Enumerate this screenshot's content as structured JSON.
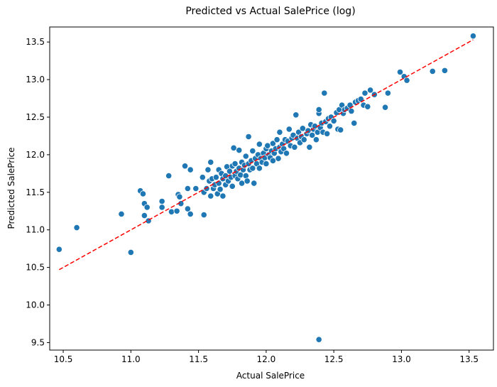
{
  "chart_data": {
    "type": "scatter",
    "title": "Predicted vs Actual SalePrice (log)",
    "xlabel": "Actual SalePrice",
    "ylabel": "Predicted SalePrice",
    "xlim": [
      10.4,
      13.68
    ],
    "ylim": [
      9.4,
      13.7
    ],
    "xticks": [
      "10.5",
      "11.0",
      "11.5",
      "12.0",
      "12.5",
      "13.0",
      "13.5"
    ],
    "yticks": [
      "9.5",
      "10.0",
      "10.5",
      "11.0",
      "11.5",
      "12.0",
      "12.5",
      "13.0",
      "13.5"
    ],
    "grid": false,
    "point_color": "#1f77b4",
    "line_color": "#ff0000",
    "reference_line": {
      "style": "dashed",
      "x": [
        10.47,
        13.53
      ],
      "y": [
        10.47,
        13.53
      ]
    },
    "points": [
      [
        10.47,
        10.74
      ],
      [
        10.6,
        11.03
      ],
      [
        10.93,
        11.21
      ],
      [
        11.0,
        10.7
      ],
      [
        11.07,
        11.52
      ],
      [
        11.09,
        11.48
      ],
      [
        11.1,
        11.35
      ],
      [
        11.1,
        11.19
      ],
      [
        11.12,
        11.3
      ],
      [
        11.13,
        11.12
      ],
      [
        11.23,
        11.38
      ],
      [
        11.23,
        11.3
      ],
      [
        11.28,
        11.72
      ],
      [
        11.3,
        11.24
      ],
      [
        11.34,
        11.25
      ],
      [
        11.35,
        11.47
      ],
      [
        11.36,
        11.44
      ],
      [
        11.37,
        11.35
      ],
      [
        11.4,
        11.85
      ],
      [
        11.42,
        11.55
      ],
      [
        11.42,
        11.28
      ],
      [
        11.44,
        11.8
      ],
      [
        11.44,
        11.21
      ],
      [
        11.48,
        11.55
      ],
      [
        11.53,
        11.7
      ],
      [
        11.54,
        11.5
      ],
      [
        11.54,
        11.2
      ],
      [
        11.56,
        11.55
      ],
      [
        11.57,
        11.8
      ],
      [
        11.58,
        11.65
      ],
      [
        11.59,
        11.45
      ],
      [
        11.59,
        11.9
      ],
      [
        11.6,
        11.68
      ],
      [
        11.61,
        11.55
      ],
      [
        11.62,
        11.6
      ],
      [
        11.63,
        11.7
      ],
      [
        11.64,
        11.48
      ],
      [
        11.65,
        11.62
      ],
      [
        11.65,
        11.8
      ],
      [
        11.66,
        11.54
      ],
      [
        11.67,
        11.75
      ],
      [
        11.68,
        11.68
      ],
      [
        11.68,
        11.45
      ],
      [
        11.7,
        11.72
      ],
      [
        11.7,
        11.6
      ],
      [
        11.71,
        11.84
      ],
      [
        11.72,
        11.65
      ],
      [
        11.73,
        11.78
      ],
      [
        11.74,
        11.7
      ],
      [
        11.75,
        11.85
      ],
      [
        11.75,
        11.58
      ],
      [
        11.76,
        12.09
      ],
      [
        11.77,
        11.72
      ],
      [
        11.77,
        11.88
      ],
      [
        11.78,
        11.78
      ],
      [
        11.79,
        11.68
      ],
      [
        11.8,
        11.82
      ],
      [
        11.8,
        12.06
      ],
      [
        11.81,
        11.73
      ],
      [
        11.82,
        11.9
      ],
      [
        11.82,
        11.62
      ],
      [
        11.83,
        11.8
      ],
      [
        11.84,
        11.86
      ],
      [
        11.85,
        11.72
      ],
      [
        11.85,
        11.98
      ],
      [
        11.86,
        11.65
      ],
      [
        11.87,
        12.24
      ],
      [
        11.87,
        11.88
      ],
      [
        11.88,
        11.8
      ],
      [
        11.89,
        11.92
      ],
      [
        11.9,
        11.82
      ],
      [
        11.9,
        12.05
      ],
      [
        11.91,
        11.62
      ],
      [
        11.92,
        11.95
      ],
      [
        11.93,
        11.88
      ],
      [
        11.94,
        12.0
      ],
      [
        11.95,
        11.82
      ],
      [
        11.95,
        12.14
      ],
      [
        11.96,
        11.95
      ],
      [
        11.97,
        11.9
      ],
      [
        11.98,
        12.02
      ],
      [
        11.99,
        11.96
      ],
      [
        12.0,
        12.08
      ],
      [
        12.0,
        11.88
      ],
      [
        12.01,
        12.12
      ],
      [
        12.02,
        12.0
      ],
      [
        12.03,
        11.96
      ],
      [
        12.04,
        12.05
      ],
      [
        12.05,
        12.15
      ],
      [
        12.05,
        11.92
      ],
      [
        12.06,
        12.02
      ],
      [
        12.07,
        12.08
      ],
      [
        12.08,
        12.2
      ],
      [
        12.09,
        11.95
      ],
      [
        12.1,
        12.1
      ],
      [
        12.1,
        12.3
      ],
      [
        12.11,
        12.04
      ],
      [
        12.12,
        12.14
      ],
      [
        12.13,
        12.08
      ],
      [
        12.14,
        12.2
      ],
      [
        12.15,
        12.02
      ],
      [
        12.16,
        12.18
      ],
      [
        12.17,
        12.34
      ],
      [
        12.18,
        12.12
      ],
      [
        12.19,
        12.22
      ],
      [
        12.2,
        12.26
      ],
      [
        12.21,
        12.1
      ],
      [
        12.22,
        12.53
      ],
      [
        12.23,
        12.22
      ],
      [
        12.24,
        12.3
      ],
      [
        12.25,
        12.16
      ],
      [
        12.26,
        12.24
      ],
      [
        12.27,
        12.35
      ],
      [
        12.28,
        12.2
      ],
      [
        12.3,
        12.28
      ],
      [
        12.31,
        12.32
      ],
      [
        12.32,
        12.1
      ],
      [
        12.33,
        12.4
      ],
      [
        12.34,
        12.26
      ],
      [
        12.35,
        12.34
      ],
      [
        12.36,
        12.38
      ],
      [
        12.37,
        12.2
      ],
      [
        12.38,
        12.3
      ],
      [
        12.39,
        12.55
      ],
      [
        12.39,
        12.6
      ],
      [
        12.39,
        9.54
      ],
      [
        12.4,
        12.36
      ],
      [
        12.41,
        12.42
      ],
      [
        12.42,
        12.3
      ],
      [
        12.43,
        12.82
      ],
      [
        12.44,
        12.44
      ],
      [
        12.45,
        12.28
      ],
      [
        12.46,
        12.48
      ],
      [
        12.47,
        12.38
      ],
      [
        12.48,
        12.5
      ],
      [
        12.5,
        12.45
      ],
      [
        12.52,
        12.56
      ],
      [
        12.53,
        12.34
      ],
      [
        12.54,
        12.6
      ],
      [
        12.55,
        12.33
      ],
      [
        12.56,
        12.66
      ],
      [
        12.57,
        12.55
      ],
      [
        12.58,
        12.6
      ],
      [
        12.6,
        12.62
      ],
      [
        12.62,
        12.66
      ],
      [
        12.63,
        12.58
      ],
      [
        12.65,
        12.42
      ],
      [
        12.66,
        12.7
      ],
      [
        12.68,
        12.72
      ],
      [
        12.7,
        12.74
      ],
      [
        12.72,
        12.66
      ],
      [
        12.73,
        12.82
      ],
      [
        12.75,
        12.64
      ],
      [
        12.77,
        12.86
      ],
      [
        12.8,
        12.8
      ],
      [
        12.88,
        12.63
      ],
      [
        12.9,
        12.82
      ],
      [
        12.99,
        13.1
      ],
      [
        13.02,
        13.04
      ],
      [
        13.04,
        12.99
      ],
      [
        13.23,
        13.11
      ],
      [
        13.32,
        13.12
      ],
      [
        13.53,
        13.58
      ]
    ]
  }
}
